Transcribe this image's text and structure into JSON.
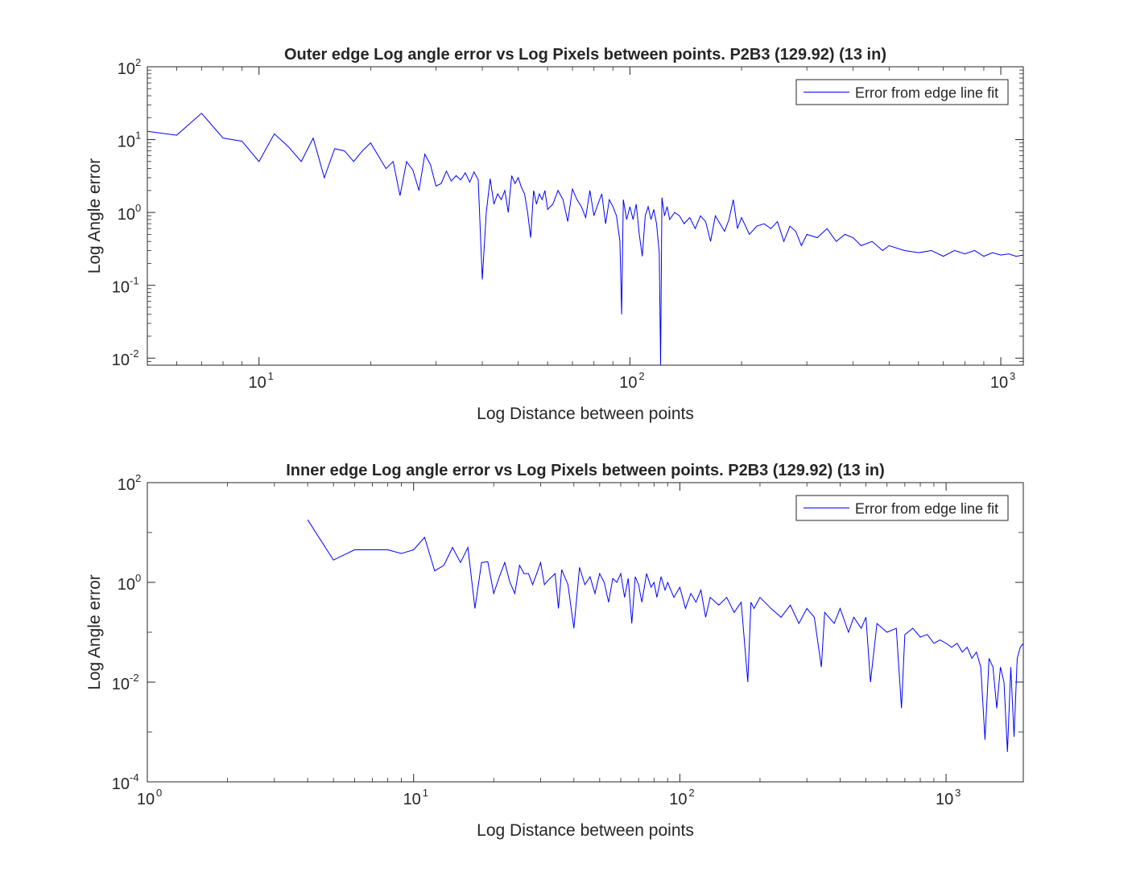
{
  "chart_data": [
    {
      "type": "line",
      "title": "Outer edge Log angle error vs Log Pixels between points. P2B3 (129.92) (13 in)",
      "xlabel": "Log Distance between points",
      "ylabel": "Log Angle error",
      "xscale": "log",
      "yscale": "log",
      "xlim": [
        5,
        1150
      ],
      "ylim": [
        0.008,
        100
      ],
      "grid": false,
      "legend_position": "top-right",
      "x_ticks": [
        {
          "value": 10,
          "base": "10",
          "exp": "1"
        },
        {
          "value": 100,
          "base": "10",
          "exp": "2"
        },
        {
          "value": 1000,
          "base": "10",
          "exp": "3"
        }
      ],
      "y_ticks": [
        {
          "value": 0.01,
          "base": "10",
          "exp": "-2"
        },
        {
          "value": 0.1,
          "base": "10",
          "exp": "-1"
        },
        {
          "value": 1,
          "base": "10",
          "exp": "0"
        },
        {
          "value": 10,
          "base": "10",
          "exp": "1"
        },
        {
          "value": 100,
          "base": "10",
          "exp": "2"
        }
      ],
      "series": [
        {
          "name": "Error from edge line fit",
          "color": "#0000ff",
          "points": [
            [
              5,
              13
            ],
            [
              6,
              11.5
            ],
            [
              7,
              23
            ],
            [
              8,
              10.5
            ],
            [
              9,
              9.5
            ],
            [
              10,
              5
            ],
            [
              11,
              12
            ],
            [
              12,
              8
            ],
            [
              13,
              5
            ],
            [
              14,
              10.5
            ],
            [
              15,
              3
            ],
            [
              16,
              7.5
            ],
            [
              17,
              7
            ],
            [
              18,
              5
            ],
            [
              19,
              7
            ],
            [
              20,
              9
            ],
            [
              22,
              4
            ],
            [
              23,
              5
            ],
            [
              24,
              1.7
            ],
            [
              25,
              5
            ],
            [
              26,
              3.8
            ],
            [
              27,
              2
            ],
            [
              28,
              6.3
            ],
            [
              29,
              4.5
            ],
            [
              30,
              2.3
            ],
            [
              31,
              2.5
            ],
            [
              32,
              3.7
            ],
            [
              33,
              2.7
            ],
            [
              34,
              3.2
            ],
            [
              35,
              2.8
            ],
            [
              36,
              3.5
            ],
            [
              37,
              2.6
            ],
            [
              38,
              3.6
            ],
            [
              39,
              2.8
            ],
            [
              40,
              0.12
            ],
            [
              41,
              1
            ],
            [
              42,
              2.9
            ],
            [
              43,
              1.3
            ],
            [
              44,
              1.8
            ],
            [
              45,
              1.5
            ],
            [
              46,
              2
            ],
            [
              47,
              1
            ],
            [
              48,
              3.2
            ],
            [
              49,
              2.5
            ],
            [
              50,
              3
            ],
            [
              51,
              2.2
            ],
            [
              52,
              1.8
            ],
            [
              53,
              1
            ],
            [
              54,
              0.45
            ],
            [
              55,
              2
            ],
            [
              56,
              1.3
            ],
            [
              57,
              1.8
            ],
            [
              58,
              1.5
            ],
            [
              59,
              2
            ],
            [
              60,
              1.1
            ],
            [
              62,
              1.3
            ],
            [
              64,
              2
            ],
            [
              66,
              1.5
            ],
            [
              68,
              0.75
            ],
            [
              70,
              2.1
            ],
            [
              72,
              1.5
            ],
            [
              74,
              1.2
            ],
            [
              76,
              0.85
            ],
            [
              78,
              2
            ],
            [
              80,
              0.9
            ],
            [
              82,
              1.3
            ],
            [
              84,
              1.8
            ],
            [
              86,
              0.7
            ],
            [
              88,
              1.5
            ],
            [
              90,
              1.2
            ],
            [
              92,
              0.9
            ],
            [
              94,
              0.4
            ],
            [
              95,
              0.04
            ],
            [
              96,
              1.5
            ],
            [
              98,
              0.8
            ],
            [
              100,
              1.2
            ],
            [
              102,
              0.8
            ],
            [
              104,
              1.3
            ],
            [
              106,
              0.5
            ],
            [
              108,
              0.25
            ],
            [
              110,
              0.9
            ],
            [
              112,
              1.2
            ],
            [
              114,
              0.8
            ],
            [
              116,
              1.1
            ],
            [
              118,
              0.7
            ],
            [
              120,
              0.28
            ],
            [
              121,
              0.008
            ],
            [
              122,
              1.6
            ],
            [
              124,
              0.9
            ],
            [
              126,
              1.2
            ],
            [
              128,
              0.8
            ],
            [
              132,
              1
            ],
            [
              136,
              0.9
            ],
            [
              140,
              0.7
            ],
            [
              145,
              0.85
            ],
            [
              150,
              0.6
            ],
            [
              155,
              0.9
            ],
            [
              160,
              0.75
            ],
            [
              165,
              0.4
            ],
            [
              170,
              0.9
            ],
            [
              175,
              0.7
            ],
            [
              180,
              0.55
            ],
            [
              185,
              0.8
            ],
            [
              190,
              1.5
            ],
            [
              195,
              0.6
            ],
            [
              200,
              0.85
            ],
            [
              210,
              0.5
            ],
            [
              220,
              0.65
            ],
            [
              230,
              0.7
            ],
            [
              240,
              0.6
            ],
            [
              250,
              0.75
            ],
            [
              260,
              0.4
            ],
            [
              270,
              0.65
            ],
            [
              280,
              0.55
            ],
            [
              290,
              0.35
            ],
            [
              300,
              0.5
            ],
            [
              320,
              0.45
            ],
            [
              340,
              0.6
            ],
            [
              360,
              0.4
            ],
            [
              380,
              0.5
            ],
            [
              400,
              0.45
            ],
            [
              420,
              0.35
            ],
            [
              450,
              0.4
            ],
            [
              480,
              0.3
            ],
            [
              500,
              0.35
            ],
            [
              550,
              0.3
            ],
            [
              600,
              0.28
            ],
            [
              650,
              0.3
            ],
            [
              700,
              0.25
            ],
            [
              750,
              0.3
            ],
            [
              800,
              0.27
            ],
            [
              850,
              0.3
            ],
            [
              900,
              0.25
            ],
            [
              950,
              0.28
            ],
            [
              1000,
              0.26
            ],
            [
              1050,
              0.27
            ],
            [
              1100,
              0.25
            ],
            [
              1150,
              0.26
            ]
          ]
        }
      ]
    },
    {
      "type": "line",
      "title": "Inner edge Log angle error vs Log Pixels between points. P2B3 (129.92) (13 in)",
      "xlabel": "Log Distance between points",
      "ylabel": "Log Angle error",
      "xscale": "log",
      "yscale": "log",
      "xlim": [
        1,
        1950
      ],
      "ylim": [
        0.0001,
        100
      ],
      "grid": false,
      "legend_position": "top-right",
      "x_ticks": [
        {
          "value": 1,
          "base": "10",
          "exp": "0"
        },
        {
          "value": 10,
          "base": "10",
          "exp": "1"
        },
        {
          "value": 100,
          "base": "10",
          "exp": "2"
        },
        {
          "value": 1000,
          "base": "10",
          "exp": "3"
        }
      ],
      "y_ticks": [
        {
          "value": 0.0001,
          "base": "10",
          "exp": "-4"
        },
        {
          "value": 0.01,
          "base": "10",
          "exp": "-2"
        },
        {
          "value": 1,
          "base": "10",
          "exp": "0"
        },
        {
          "value": 100,
          "base": "10",
          "exp": "2"
        }
      ],
      "series": [
        {
          "name": "Error from edge line fit",
          "color": "#0000ff",
          "points": [
            [
              4,
              18
            ],
            [
              5,
              2.8
            ],
            [
              6,
              4.5
            ],
            [
              7,
              4.5
            ],
            [
              8,
              4.5
            ],
            [
              9,
              3.8
            ],
            [
              10,
              4.5
            ],
            [
              11,
              8
            ],
            [
              12,
              1.7
            ],
            [
              13,
              2.2
            ],
            [
              14,
              5
            ],
            [
              15,
              2.5
            ],
            [
              16,
              5
            ],
            [
              17,
              0.3
            ],
            [
              18,
              2.5
            ],
            [
              19,
              2.6
            ],
            [
              20,
              0.6
            ],
            [
              21,
              1.3
            ],
            [
              22,
              2.5
            ],
            [
              23,
              1
            ],
            [
              24,
              0.6
            ],
            [
              25,
              2.2
            ],
            [
              26,
              1.5
            ],
            [
              27,
              1.5
            ],
            [
              28,
              0.9
            ],
            [
              29,
              1.5
            ],
            [
              30,
              2.5
            ],
            [
              31,
              0.9
            ],
            [
              32,
              1.1
            ],
            [
              34,
              1.5
            ],
            [
              35,
              0.3
            ],
            [
              36,
              1.8
            ],
            [
              38,
              0.9
            ],
            [
              40,
              0.12
            ],
            [
              42,
              2
            ],
            [
              44,
              0.9
            ],
            [
              46,
              1.3
            ],
            [
              48,
              0.6
            ],
            [
              50,
              1.5
            ],
            [
              52,
              1
            ],
            [
              54,
              0.4
            ],
            [
              56,
              1.2
            ],
            [
              58,
              1
            ],
            [
              60,
              1.5
            ],
            [
              62,
              0.5
            ],
            [
              64,
              1.2
            ],
            [
              66,
              0.15
            ],
            [
              68,
              1.3
            ],
            [
              70,
              0.9
            ],
            [
              72,
              0.4
            ],
            [
              75,
              1.5
            ],
            [
              78,
              0.8
            ],
            [
              80,
              1
            ],
            [
              82,
              0.5
            ],
            [
              85,
              1.3
            ],
            [
              88,
              0.7
            ],
            [
              90,
              1
            ],
            [
              95,
              0.5
            ],
            [
              100,
              0.8
            ],
            [
              105,
              0.3
            ],
            [
              110,
              0.6
            ],
            [
              115,
              0.4
            ],
            [
              120,
              0.7
            ],
            [
              125,
              0.2
            ],
            [
              130,
              0.5
            ],
            [
              140,
              0.35
            ],
            [
              150,
              0.5
            ],
            [
              160,
              0.25
            ],
            [
              170,
              0.4
            ],
            [
              180,
              0.01
            ],
            [
              185,
              0.4
            ],
            [
              190,
              0.3
            ],
            [
              200,
              0.5
            ],
            [
              220,
              0.3
            ],
            [
              240,
              0.2
            ],
            [
              260,
              0.35
            ],
            [
              280,
              0.15
            ],
            [
              300,
              0.3
            ],
            [
              320,
              0.2
            ],
            [
              340,
              0.02
            ],
            [
              350,
              0.25
            ],
            [
              380,
              0.15
            ],
            [
              400,
              0.3
            ],
            [
              430,
              0.1
            ],
            [
              450,
              0.2
            ],
            [
              480,
              0.12
            ],
            [
              500,
              0.2
            ],
            [
              520,
              0.01
            ],
            [
              550,
              0.15
            ],
            [
              600,
              0.1
            ],
            [
              650,
              0.12
            ],
            [
              680,
              0.003
            ],
            [
              700,
              0.09
            ],
            [
              750,
              0.12
            ],
            [
              800,
              0.08
            ],
            [
              850,
              0.09
            ],
            [
              900,
              0.06
            ],
            [
              950,
              0.07
            ],
            [
              1000,
              0.06
            ],
            [
              1050,
              0.05
            ],
            [
              1100,
              0.06
            ],
            [
              1150,
              0.04
            ],
            [
              1200,
              0.05
            ],
            [
              1250,
              0.03
            ],
            [
              1300,
              0.04
            ],
            [
              1350,
              0.02
            ],
            [
              1400,
              0.0007
            ],
            [
              1450,
              0.03
            ],
            [
              1500,
              0.02
            ],
            [
              1550,
              0.003
            ],
            [
              1600,
              0.02
            ],
            [
              1650,
              0.01
            ],
            [
              1700,
              0.0004
            ],
            [
              1750,
              0.02
            ],
            [
              1800,
              0.0008
            ],
            [
              1850,
              0.03
            ],
            [
              1900,
              0.05
            ],
            [
              1950,
              0.06
            ]
          ]
        }
      ]
    }
  ]
}
